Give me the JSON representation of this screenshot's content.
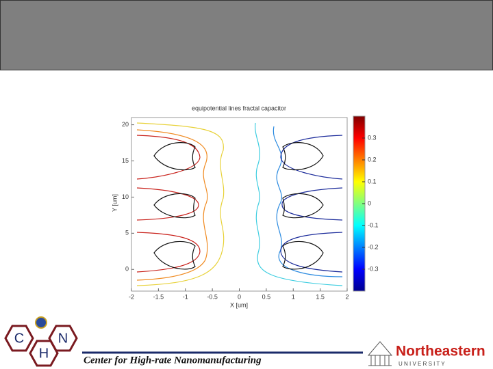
{
  "slide": {
    "footer": "Center for High-rate Nanomanufacturing",
    "logo_letters": [
      "C",
      "H",
      "N"
    ],
    "university": "Northeastern",
    "university_sub": "U N I V E R S I T Y"
  },
  "plot": {
    "title": "equipotential lines fractal capacitor",
    "xlabel": "X [um]",
    "ylabel": "Y [um]",
    "xlim": [
      -2,
      2
    ],
    "ylim": [
      -3,
      21
    ],
    "xticks": [
      -2,
      -1.5,
      -1,
      -0.5,
      0,
      0.5,
      1,
      1.5,
      2
    ],
    "yticks": [
      0,
      5,
      10,
      15,
      20
    ],
    "colorbar": {
      "lim": [
        -0.4,
        0.4
      ],
      "ticks": [
        0.3,
        0.2,
        0.1,
        0,
        -0.1,
        -0.2,
        -0.3
      ]
    }
  }
}
